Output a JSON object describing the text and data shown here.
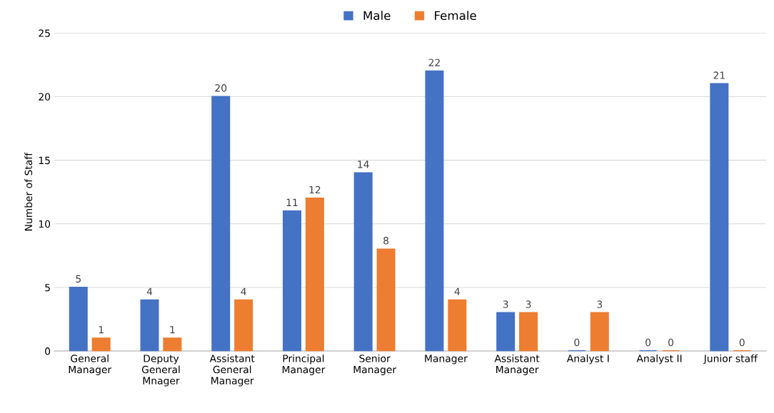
{
  "chart_data": {
    "type": "bar",
    "ylabel": "Number of Staff",
    "categories": [
      "General Manager",
      "Deputy General Mnager",
      "Assistant General Manager",
      "Principal Manager",
      "Senior Manager",
      "Manager",
      "Assistant Manager",
      "Analyst I",
      "Analyst II",
      "Junior staff"
    ],
    "series": [
      {
        "name": "Male",
        "color": "#4472c4",
        "values": [
          5,
          4,
          20,
          11,
          14,
          22,
          3,
          0,
          0,
          21
        ]
      },
      {
        "name": "Female",
        "color": "#ed7d31",
        "values": [
          1,
          1,
          4,
          12,
          8,
          4,
          3,
          3,
          0,
          0
        ]
      }
    ],
    "ylim": [
      0,
      25
    ],
    "yticks": [
      0,
      5,
      10,
      15,
      20,
      25
    ],
    "grid": "y",
    "legend": "top",
    "data_labels": true
  }
}
